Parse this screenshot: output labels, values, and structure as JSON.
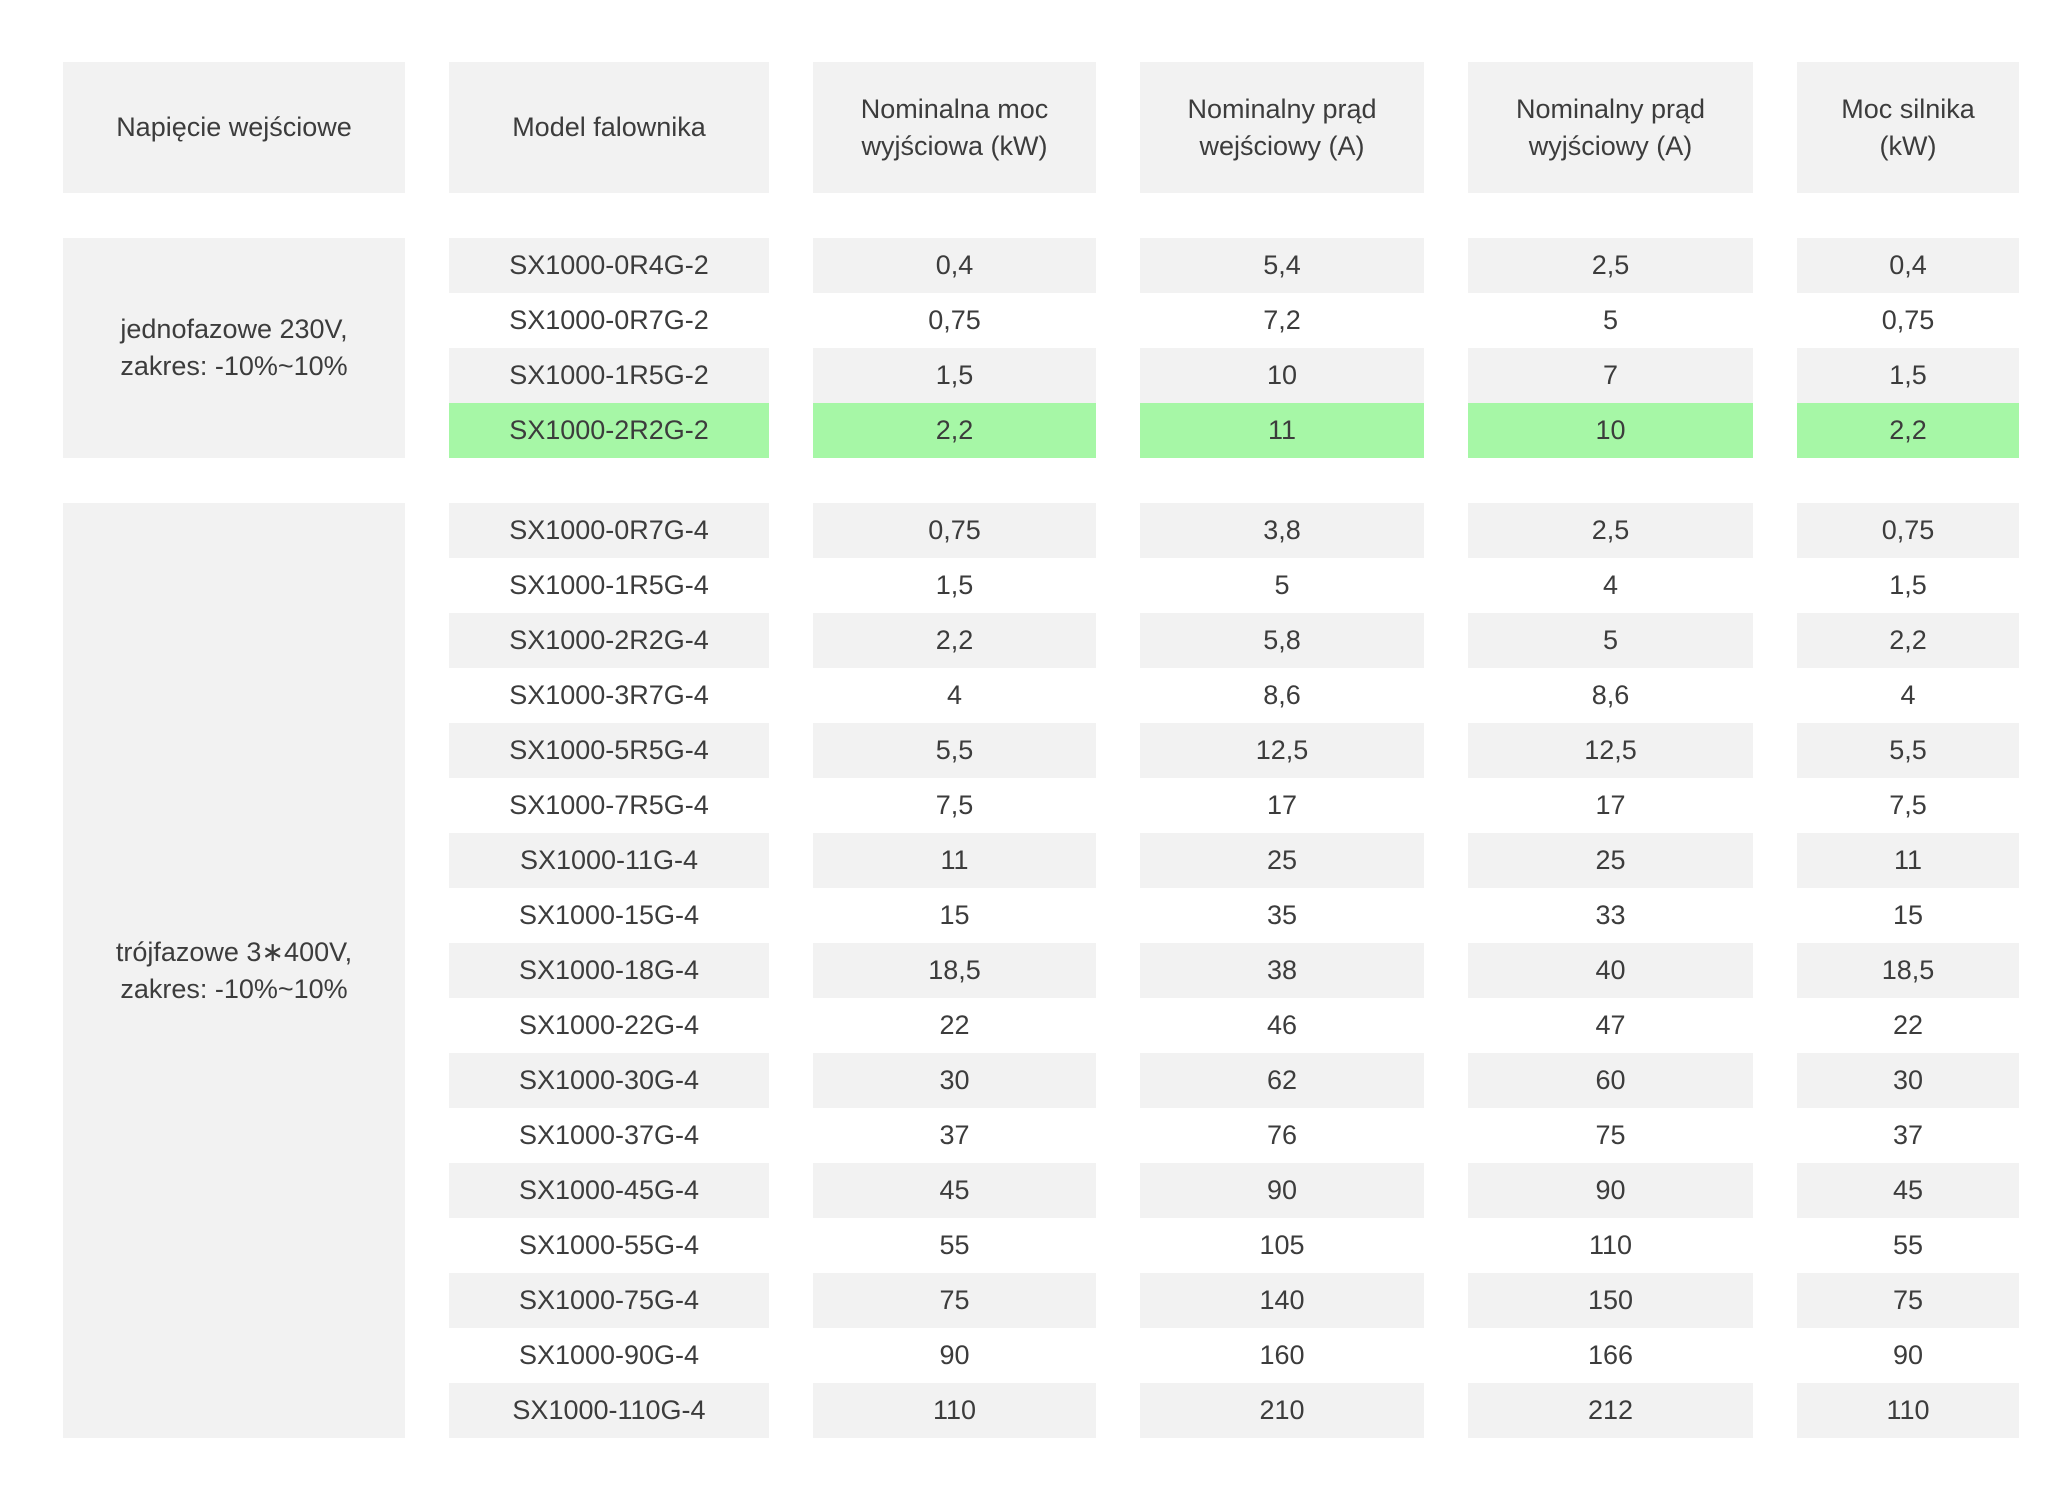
{
  "theme": {
    "gray": "#f2f2f2",
    "green": "#a6f7a6",
    "text": "#3c3c3c"
  },
  "table": {
    "headers": [
      {
        "lines": [
          "Napięcie wejściowe"
        ]
      },
      {
        "lines": [
          "Model falownika"
        ]
      },
      {
        "lines": [
          "Nominalna moc",
          "wyjściowa (kW)"
        ]
      },
      {
        "lines": [
          "Nominalny prąd",
          "wejściowy (A)"
        ]
      },
      {
        "lines": [
          "Nominalny prąd",
          "wyjściowy (A)"
        ]
      },
      {
        "lines": [
          "Moc silnika",
          "(kW)"
        ]
      }
    ],
    "groups": [
      {
        "voltage_lines": [
          "jednofazowe 230V,",
          "zakres: -10%~10%"
        ],
        "rows": [
          {
            "values": [
              "SX1000-0R4G-2",
              "0,4",
              "5,4",
              "2,5",
              "0,4"
            ]
          },
          {
            "values": [
              "SX1000-0R7G-2",
              "0,75",
              "7,2",
              "5",
              "0,75"
            ]
          },
          {
            "values": [
              "SX1000-1R5G-2",
              "1,5",
              "10",
              "7",
              "1,5"
            ]
          },
          {
            "values": [
              "SX1000-2R2G-2",
              "2,2",
              "11",
              "10",
              "2,2"
            ],
            "highlight": true
          }
        ]
      },
      {
        "voltage_lines": [
          "trójfazowe 3∗400V,",
          "zakres: -10%~10%"
        ],
        "rows": [
          {
            "values": [
              "SX1000-0R7G-4",
              "0,75",
              "3,8",
              "2,5",
              "0,75"
            ]
          },
          {
            "values": [
              "SX1000-1R5G-4",
              "1,5",
              "5",
              "4",
              "1,5"
            ]
          },
          {
            "values": [
              "SX1000-2R2G-4",
              "2,2",
              "5,8",
              "5",
              "2,2"
            ]
          },
          {
            "values": [
              "SX1000-3R7G-4",
              "4",
              "8,6",
              "8,6",
              "4"
            ]
          },
          {
            "values": [
              "SX1000-5R5G-4",
              "5,5",
              "12,5",
              "12,5",
              "5,5"
            ]
          },
          {
            "values": [
              "SX1000-7R5G-4",
              "7,5",
              "17",
              "17",
              "7,5"
            ]
          },
          {
            "values": [
              "SX1000-11G-4",
              "11",
              "25",
              "25",
              "11"
            ]
          },
          {
            "values": [
              "SX1000-15G-4",
              "15",
              "35",
              "33",
              "15"
            ]
          },
          {
            "values": [
              "SX1000-18G-4",
              "18,5",
              "38",
              "40",
              "18,5"
            ]
          },
          {
            "values": [
              "SX1000-22G-4",
              "22",
              "46",
              "47",
              "22"
            ]
          },
          {
            "values": [
              "SX1000-30G-4",
              "30",
              "62",
              "60",
              "30"
            ]
          },
          {
            "values": [
              "SX1000-37G-4",
              "37",
              "76",
              "75",
              "37"
            ]
          },
          {
            "values": [
              "SX1000-45G-4",
              "45",
              "90",
              "90",
              "45"
            ]
          },
          {
            "values": [
              "SX1000-55G-4",
              "55",
              "105",
              "110",
              "55"
            ]
          },
          {
            "values": [
              "SX1000-75G-4",
              "75",
              "140",
              "150",
              "75"
            ]
          },
          {
            "values": [
              "SX1000-90G-4",
              "90",
              "160",
              "166",
              "90"
            ]
          },
          {
            "values": [
              "SX1000-110G-4",
              "110",
              "210",
              "212",
              "110"
            ]
          }
        ]
      }
    ]
  }
}
